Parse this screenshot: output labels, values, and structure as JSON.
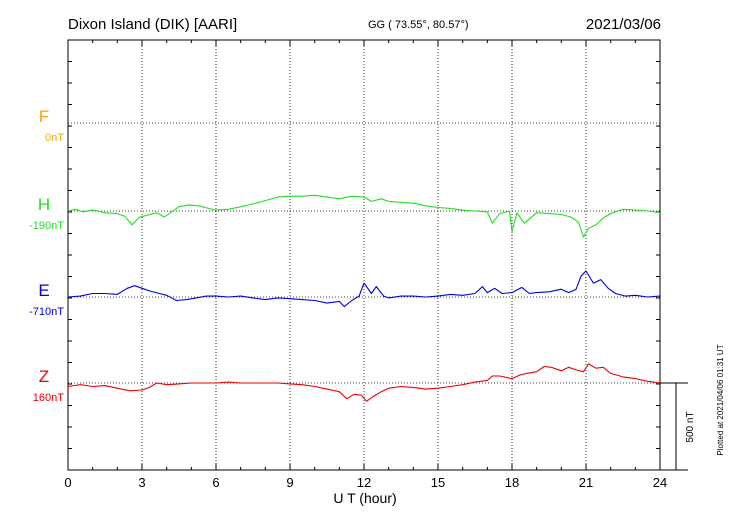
{
  "header": {
    "station": "Dixon Island (DIK)  [AARI]",
    "coords": "GG ( 73.55°,  80.57°)",
    "date": "2021/03/06"
  },
  "footer_note": "Plotted at 2021/04/06 01:31  UT",
  "chart_data": {
    "type": "line",
    "xlabel": "U T (hour)",
    "xlim": [
      0,
      24
    ],
    "x_ticks": [
      0,
      3,
      6,
      9,
      12,
      15,
      18,
      21,
      24
    ],
    "x_tick_labels": [
      "0",
      "3",
      "6",
      "9",
      "12",
      "15",
      "18",
      "21",
      "24"
    ],
    "grid": true,
    "scale_bar": {
      "label": "500 nT",
      "value_nT": 500
    },
    "panels": [
      {
        "label": "F",
        "baseline_label": "0nT",
        "color": "#f5a800",
        "baseline_nT": 0,
        "points": []
      },
      {
        "label": "H",
        "baseline_label": "-190nT",
        "color": "#22dd22",
        "baseline_nT": -190,
        "points": [
          [
            0,
            -190
          ],
          [
            0.3,
            -180
          ],
          [
            0.6,
            -195
          ],
          [
            1,
            -185
          ],
          [
            1.5,
            -200
          ],
          [
            2,
            -205
          ],
          [
            2.3,
            -220
          ],
          [
            2.6,
            -270
          ],
          [
            2.9,
            -225
          ],
          [
            3.2,
            -215
          ],
          [
            3.6,
            -200
          ],
          [
            3.9,
            -225
          ],
          [
            4.2,
            -195
          ],
          [
            4.5,
            -165
          ],
          [
            4.9,
            -155
          ],
          [
            5.3,
            -160
          ],
          [
            5.7,
            -175
          ],
          [
            6,
            -185
          ],
          [
            6.5,
            -180
          ],
          [
            7,
            -165
          ],
          [
            7.5,
            -150
          ],
          [
            8,
            -130
          ],
          [
            8.5,
            -110
          ],
          [
            9,
            -105
          ],
          [
            9.5,
            -105
          ],
          [
            10,
            -100
          ],
          [
            10.5,
            -110
          ],
          [
            11,
            -120
          ],
          [
            11.5,
            -105
          ],
          [
            12,
            -110
          ],
          [
            12.3,
            -135
          ],
          [
            12.7,
            -120
          ],
          [
            13,
            -135
          ],
          [
            13.5,
            -140
          ],
          [
            14,
            -145
          ],
          [
            14.5,
            -160
          ],
          [
            15,
            -170
          ],
          [
            15.5,
            -175
          ],
          [
            16,
            -185
          ],
          [
            16.5,
            -190
          ],
          [
            17,
            -195
          ],
          [
            17.2,
            -260
          ],
          [
            17.5,
            -205
          ],
          [
            17.9,
            -190
          ],
          [
            18,
            -310
          ],
          [
            18.2,
            -200
          ],
          [
            18.5,
            -260
          ],
          [
            18.8,
            -225
          ],
          [
            19,
            -200
          ],
          [
            19.5,
            -205
          ],
          [
            20,
            -210
          ],
          [
            20.4,
            -225
          ],
          [
            20.7,
            -255
          ],
          [
            20.9,
            -340
          ],
          [
            21.1,
            -290
          ],
          [
            21.4,
            -270
          ],
          [
            21.7,
            -230
          ],
          [
            22,
            -205
          ],
          [
            22.5,
            -180
          ],
          [
            23,
            -185
          ],
          [
            23.5,
            -190
          ],
          [
            24,
            -200
          ]
        ]
      },
      {
        "label": "E",
        "baseline_label": "-710nT",
        "color": "#0000dd",
        "baseline_nT": -710,
        "points": [
          [
            0,
            -710
          ],
          [
            0.5,
            -705
          ],
          [
            1,
            -690
          ],
          [
            1.5,
            -690
          ],
          [
            2,
            -695
          ],
          [
            2.4,
            -660
          ],
          [
            2.7,
            -645
          ],
          [
            3,
            -660
          ],
          [
            3.3,
            -675
          ],
          [
            3.7,
            -690
          ],
          [
            4,
            -700
          ],
          [
            4.4,
            -730
          ],
          [
            4.8,
            -725
          ],
          [
            5.2,
            -715
          ],
          [
            5.6,
            -705
          ],
          [
            6,
            -705
          ],
          [
            6.5,
            -710
          ],
          [
            7,
            -705
          ],
          [
            7.5,
            -715
          ],
          [
            8,
            -725
          ],
          [
            8.5,
            -715
          ],
          [
            9,
            -720
          ],
          [
            9.5,
            -725
          ],
          [
            10,
            -730
          ],
          [
            10.5,
            -745
          ],
          [
            11,
            -735
          ],
          [
            11.2,
            -765
          ],
          [
            11.5,
            -730
          ],
          [
            11.8,
            -705
          ],
          [
            12,
            -630
          ],
          [
            12.3,
            -690
          ],
          [
            12.5,
            -650
          ],
          [
            12.8,
            -705
          ],
          [
            13,
            -715
          ],
          [
            13.5,
            -705
          ],
          [
            14,
            -705
          ],
          [
            14.5,
            -710
          ],
          [
            15,
            -705
          ],
          [
            15.5,
            -695
          ],
          [
            16,
            -700
          ],
          [
            16.5,
            -690
          ],
          [
            16.8,
            -650
          ],
          [
            17,
            -685
          ],
          [
            17.3,
            -660
          ],
          [
            17.6,
            -690
          ],
          [
            18,
            -685
          ],
          [
            18.4,
            -655
          ],
          [
            18.7,
            -690
          ],
          [
            19,
            -685
          ],
          [
            19.5,
            -680
          ],
          [
            20,
            -665
          ],
          [
            20.3,
            -685
          ],
          [
            20.6,
            -665
          ],
          [
            20.8,
            -590
          ],
          [
            21,
            -560
          ],
          [
            21.3,
            -630
          ],
          [
            21.6,
            -610
          ],
          [
            21.9,
            -660
          ],
          [
            22.2,
            -690
          ],
          [
            22.6,
            -705
          ],
          [
            23,
            -700
          ],
          [
            23.5,
            -710
          ],
          [
            24,
            -705
          ]
        ]
      },
      {
        "label": "Z",
        "baseline_label": "160nT",
        "color": "#ee0000",
        "baseline_nT": 160,
        "points": [
          [
            0,
            140
          ],
          [
            0.5,
            150
          ],
          [
            1,
            140
          ],
          [
            1.5,
            145
          ],
          [
            2,
            130
          ],
          [
            2.5,
            115
          ],
          [
            3,
            120
          ],
          [
            3.3,
            135
          ],
          [
            3.6,
            160
          ],
          [
            4,
            150
          ],
          [
            4.5,
            155
          ],
          [
            5,
            160
          ],
          [
            5.5,
            160
          ],
          [
            6,
            160
          ],
          [
            6.5,
            165
          ],
          [
            7,
            160
          ],
          [
            7.5,
            160
          ],
          [
            8,
            160
          ],
          [
            8.5,
            160
          ],
          [
            9,
            155
          ],
          [
            9.5,
            150
          ],
          [
            10,
            140
          ],
          [
            10.5,
            125
          ],
          [
            11,
            110
          ],
          [
            11.3,
            70
          ],
          [
            11.6,
            95
          ],
          [
            11.9,
            90
          ],
          [
            12.1,
            55
          ],
          [
            12.4,
            85
          ],
          [
            12.7,
            110
          ],
          [
            13,
            130
          ],
          [
            13.5,
            140
          ],
          [
            14,
            135
          ],
          [
            14.5,
            125
          ],
          [
            15,
            130
          ],
          [
            15.5,
            140
          ],
          [
            16,
            150
          ],
          [
            16.5,
            165
          ],
          [
            17,
            175
          ],
          [
            17.2,
            200
          ],
          [
            17.5,
            200
          ],
          [
            18,
            185
          ],
          [
            18.3,
            205
          ],
          [
            18.6,
            215
          ],
          [
            19,
            225
          ],
          [
            19.3,
            255
          ],
          [
            19.6,
            250
          ],
          [
            20,
            230
          ],
          [
            20.3,
            250
          ],
          [
            20.6,
            235
          ],
          [
            20.9,
            225
          ],
          [
            21.1,
            270
          ],
          [
            21.4,
            245
          ],
          [
            21.7,
            250
          ],
          [
            22,
            215
          ],
          [
            22.5,
            195
          ],
          [
            23,
            185
          ],
          [
            23.5,
            170
          ],
          [
            24,
            160
          ]
        ]
      }
    ]
  }
}
